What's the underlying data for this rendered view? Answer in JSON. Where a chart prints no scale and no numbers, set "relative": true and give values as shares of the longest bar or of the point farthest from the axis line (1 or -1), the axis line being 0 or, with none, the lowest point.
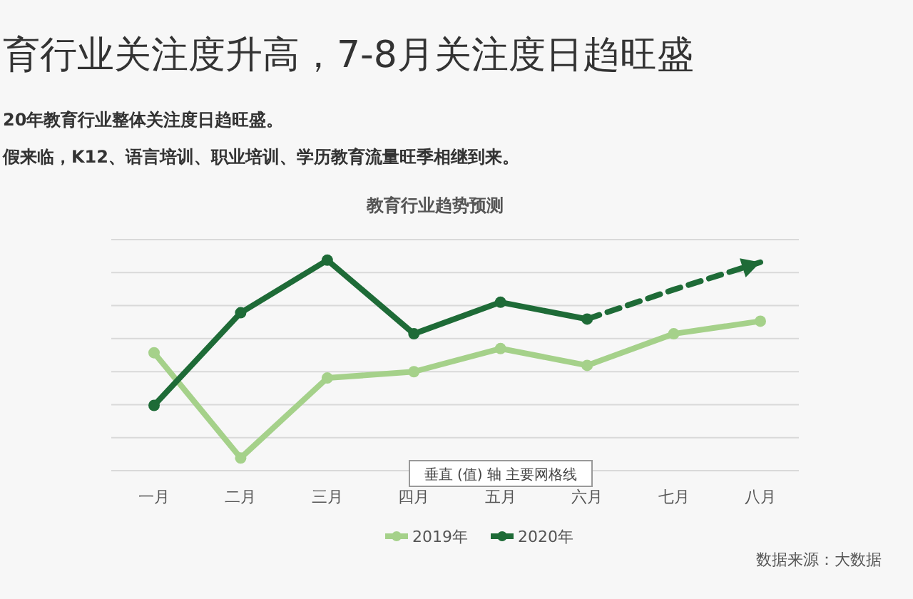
{
  "chart_data": {
    "type": "line",
    "title": "育行业关注度升高，7-8月关注度日趋旺盛",
    "subtitle": "20年教育行业整体关注度日趋旺盛。",
    "annotations": [
      "教育行业趋势预测",
      "垂直 (值) 轴 主要网格线",
      "数据来源：大数据",
      "假来临，K12、语言培训、职业培训、学历教育流量旺季相继到来。"
    ],
    "categories": [
      "一月",
      "二月",
      "三月",
      "四月",
      "五月",
      "六月",
      "七月",
      "八月"
    ],
    "relative": true,
    "grid": "y",
    "legend": "bottom",
    "series": [
      {
        "name": "2019年",
        "color": "#a5d18a",
        "marker": "circle",
        "values": [
          0.56,
          0.06,
          0.44,
          0.47,
          0.58,
          0.5,
          0.65,
          0.71
        ]
      },
      {
        "name": "2020年",
        "color": "#1e6b37",
        "marker": "circle",
        "values": [
          0.31,
          0.75,
          1.0,
          0.65,
          0.8,
          0.72,
          null,
          null
        ]
      },
      {
        "color": "#1e6b37",
        "marker": "none",
        "line_style": "dashed",
        "values": [
          null,
          null,
          null,
          null,
          null,
          0.72,
          0.86,
          0.99
        ]
      }
    ]
  }
}
